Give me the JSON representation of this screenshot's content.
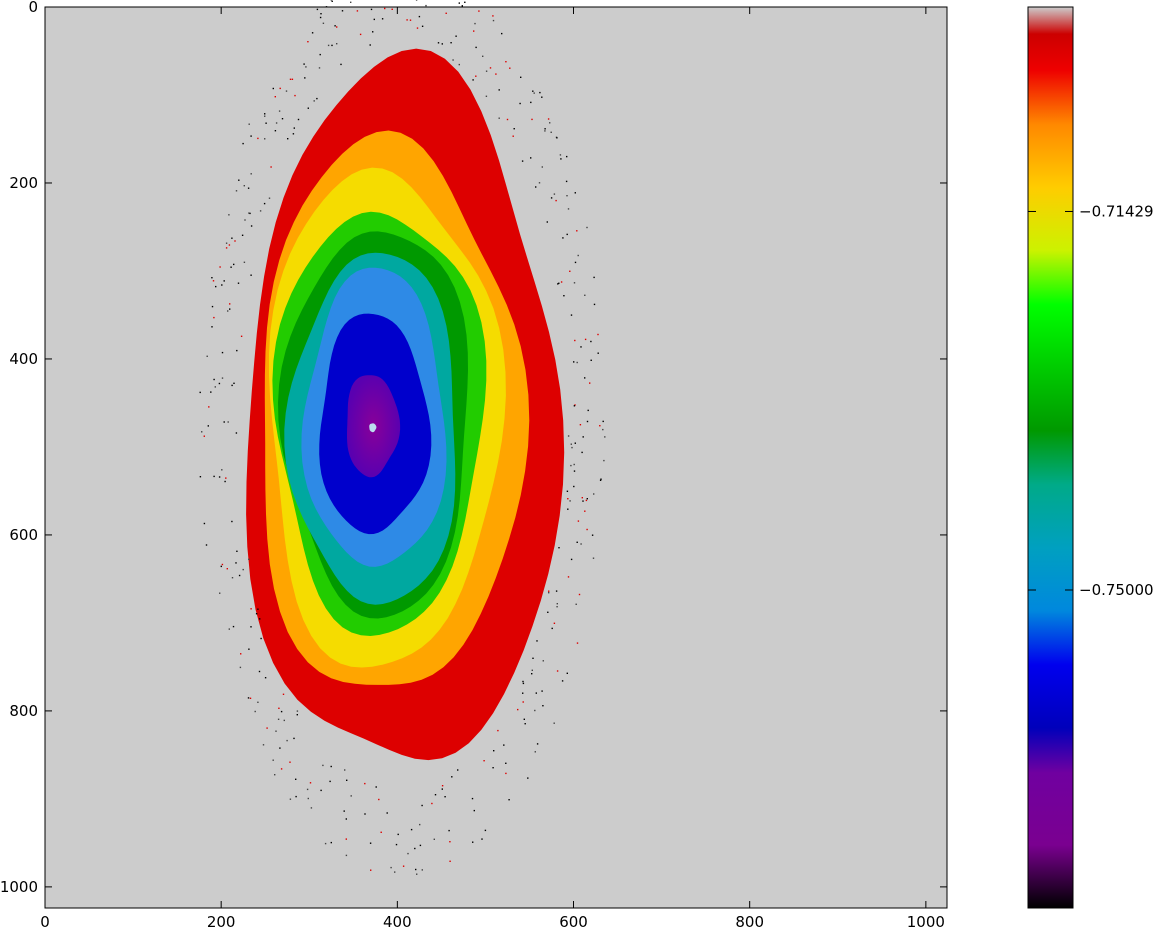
{
  "chart_data": {
    "type": "heatmap",
    "title": "",
    "xlabel": "",
    "ylabel": "",
    "xlim": [
      0,
      1024
    ],
    "ylim": [
      1024,
      0
    ],
    "y_axis_inverted": true,
    "grid": false,
    "background_value_color": "#cccccc",
    "x_ticks": [
      {
        "value": 0,
        "label": "0"
      },
      {
        "value": 200,
        "label": "200"
      },
      {
        "value": 400,
        "label": "400"
      },
      {
        "value": 600,
        "label": "600"
      },
      {
        "value": 800,
        "label": "800"
      },
      {
        "value": 1000,
        "label": "1000"
      }
    ],
    "y_ticks": [
      {
        "value": 0,
        "label": "0"
      },
      {
        "value": 200,
        "label": "200"
      },
      {
        "value": 400,
        "label": "400"
      },
      {
        "value": 600,
        "label": "600"
      },
      {
        "value": 800,
        "label": "800"
      },
      {
        "value": 1000,
        "label": "1000"
      }
    ],
    "colormap": "nipy_spectral",
    "colorbar": {
      "placement": "right",
      "ticks": [
        {
          "value": -0.71429,
          "label": "−0.71429"
        },
        {
          "value": -0.75,
          "label": "−0.75000"
        }
      ],
      "value_range_approx": [
        -0.78,
        -0.695
      ]
    },
    "regions": [
      {
        "name": "outer",
        "color": "#dd0000",
        "center": [
          405,
          470
        ],
        "rx": 178,
        "ry": 400
      },
      {
        "name": "orange",
        "color": "#ffa500",
        "center": [
          390,
          470
        ],
        "rx": 150,
        "ry": 315
      },
      {
        "name": "yellow",
        "color": "#f5dc00",
        "center": [
          383,
          468
        ],
        "rx": 132,
        "ry": 282
      },
      {
        "name": "green",
        "color": "#22cc00",
        "center": [
          380,
          468
        ],
        "rx": 118,
        "ry": 240
      },
      {
        "name": "dark-green",
        "color": "#009900",
        "center": [
          378,
          470
        ],
        "rx": 106,
        "ry": 220
      },
      {
        "name": "teal",
        "color": "#00a8a0",
        "center": [
          375,
          480
        ],
        "rx": 96,
        "ry": 200
      },
      {
        "name": "light-blue",
        "color": "#2e8ae6",
        "center": [
          375,
          470
        ],
        "rx": 80,
        "ry": 170
      },
      {
        "name": "blue",
        "color": "#0000cc",
        "center": [
          373,
          475
        ],
        "rx": 62,
        "ry": 125
      },
      {
        "name": "purple",
        "color": "#880099",
        "center": [
          371,
          475
        ],
        "rx": 30,
        "ry": 58
      },
      {
        "name": "center-point",
        "color": "#bbddee",
        "center": [
          372,
          478
        ],
        "rx": 4,
        "ry": 5
      }
    ]
  }
}
